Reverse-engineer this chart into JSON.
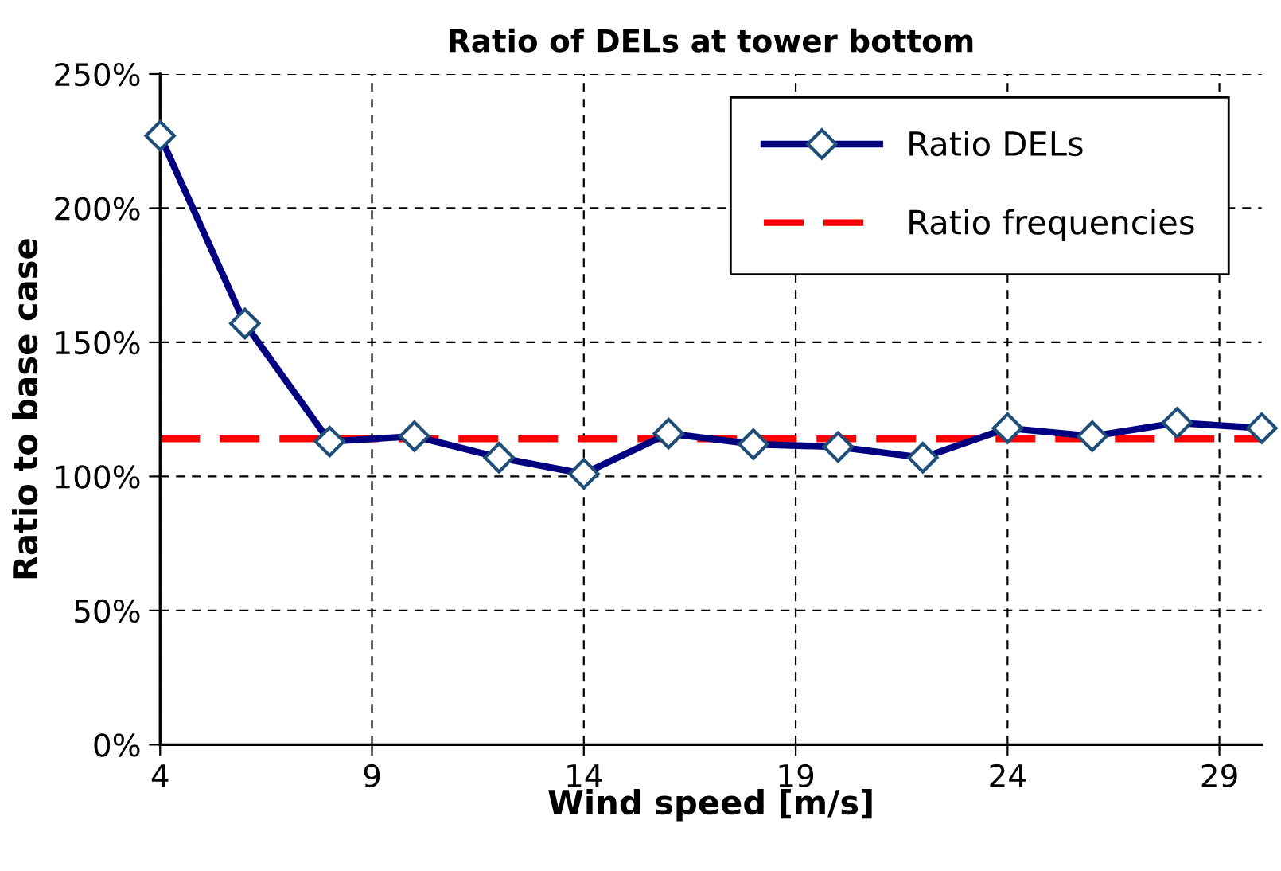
{
  "chart_data": {
    "type": "line",
    "title": "Ratio of DELs at tower bottom",
    "xlabel": "Wind speed [m/s]",
    "ylabel": "Ratio to base case",
    "x": [
      4,
      6,
      8,
      10,
      12,
      14,
      16,
      18,
      20,
      22,
      24,
      26,
      28,
      30
    ],
    "series": [
      {
        "name": "Ratio DELs",
        "color": "#000080",
        "values": [
          227,
          157,
          113,
          115,
          107,
          101,
          116,
          112,
          111,
          107,
          118,
          115,
          120,
          118
        ]
      }
    ],
    "ref_lines": [
      {
        "axis": "y",
        "value": 114,
        "label": "Ratio frequencies",
        "color": "#ff0000",
        "line_style": "dashed"
      }
    ],
    "xlim": [
      4,
      30
    ],
    "xticks": [
      4,
      9,
      14,
      19,
      24,
      29
    ],
    "ylim": [
      0,
      250
    ],
    "yticks": [
      {
        "value": 0,
        "label": "0%"
      },
      {
        "value": 50,
        "label": "50%"
      },
      {
        "value": 100,
        "label": "100%"
      },
      {
        "value": 150,
        "label": "150%"
      },
      {
        "value": 200,
        "label": "200%"
      },
      {
        "value": 250,
        "label": "250%"
      }
    ],
    "grid": true,
    "legend": "top right",
    "marker": "diamond",
    "line_style": "solid"
  }
}
